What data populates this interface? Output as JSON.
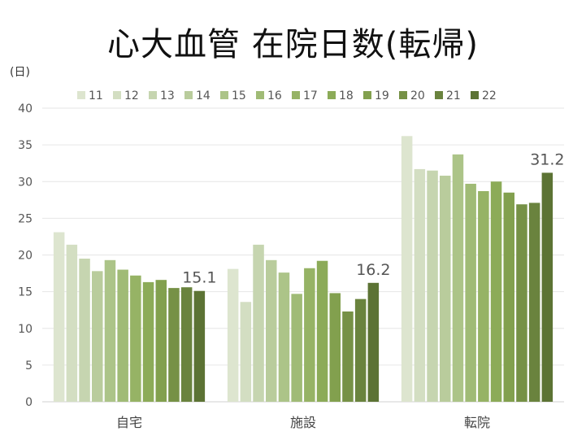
{
  "title": "心大血管 在院日数(転帰)",
  "chart_data": {
    "type": "bar",
    "ylabel": "(日)",
    "categories": [
      "自宅",
      "施設",
      "転院"
    ],
    "ylim": [
      0,
      40
    ],
    "yticks": [
      0,
      5,
      10,
      15,
      20,
      25,
      30,
      35,
      40
    ],
    "grid": true,
    "legend_position": "top",
    "series": [
      {
        "name": "11",
        "color": "#dde5cf",
        "values": [
          23.1,
          18.1,
          36.2
        ]
      },
      {
        "name": "12",
        "color": "#d3dec2",
        "values": [
          21.4,
          13.6,
          31.7
        ]
      },
      {
        "name": "13",
        "color": "#c6d5b0",
        "values": [
          19.5,
          21.4,
          31.5
        ]
      },
      {
        "name": "14",
        "color": "#b9cc9c",
        "values": [
          17.8,
          19.3,
          30.8
        ]
      },
      {
        "name": "15",
        "color": "#acc488",
        "values": [
          19.3,
          17.6,
          33.7
        ]
      },
      {
        "name": "16",
        "color": "#a0bb76",
        "values": [
          18.0,
          14.7,
          29.7
        ]
      },
      {
        "name": "17",
        "color": "#96b365",
        "values": [
          17.2,
          18.2,
          28.7
        ]
      },
      {
        "name": "18",
        "color": "#8cab58",
        "values": [
          16.3,
          19.2,
          30.0
        ]
      },
      {
        "name": "19",
        "color": "#82a04e",
        "values": [
          16.6,
          14.8,
          28.5
        ]
      },
      {
        "name": "20",
        "color": "#769146",
        "values": [
          15.5,
          12.3,
          26.9
        ]
      },
      {
        "name": "21",
        "color": "#6a833e",
        "values": [
          15.6,
          14.0,
          27.1
        ]
      },
      {
        "name": "22",
        "color": "#5c7334",
        "values": [
          15.1,
          16.2,
          31.2
        ]
      }
    ],
    "data_labels": [
      {
        "series": "22",
        "category": "自宅",
        "text": "15.1"
      },
      {
        "series": "22",
        "category": "施設",
        "text": "16.2"
      },
      {
        "series": "22",
        "category": "転院",
        "text": "31.2"
      }
    ]
  }
}
